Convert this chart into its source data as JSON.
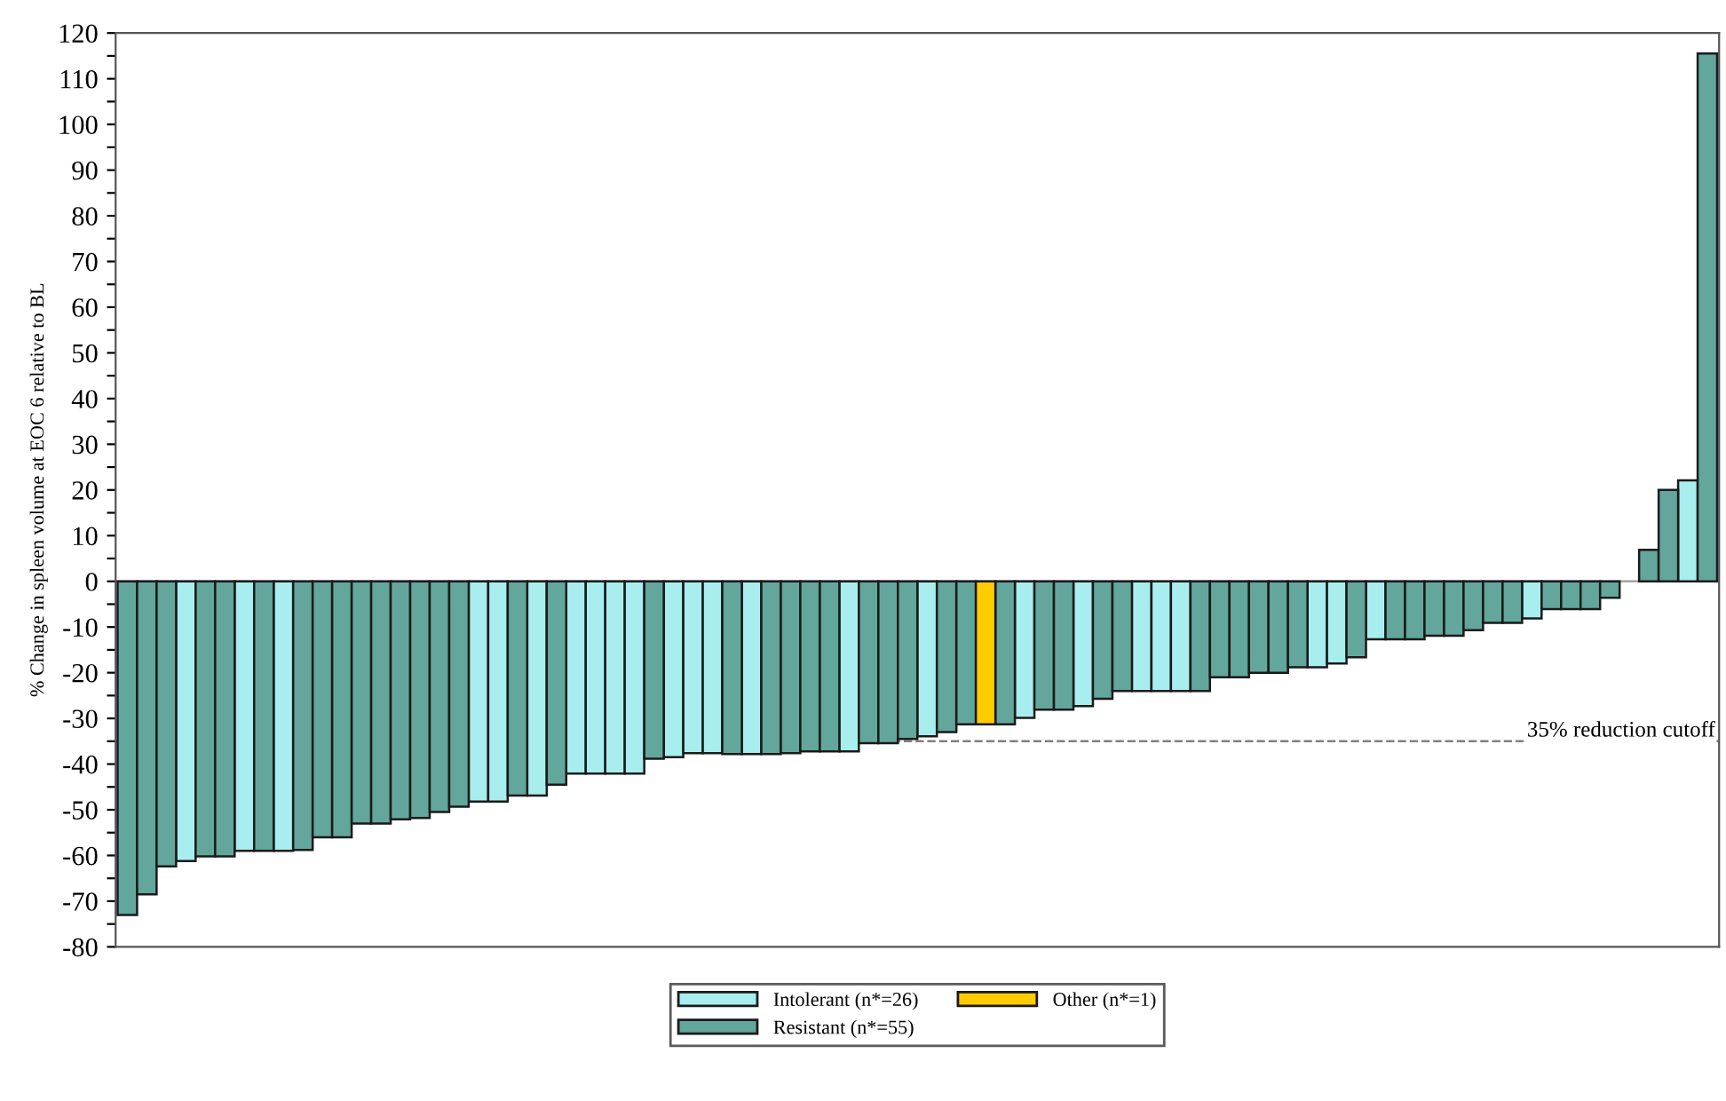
{
  "chart_data": {
    "type": "bar",
    "ylabel": "% Change in spleen volume at EOC 6 relative to BL",
    "categories": [
      null,
      null,
      null,
      null,
      null,
      null,
      null,
      null,
      null,
      null,
      null,
      null,
      null,
      null,
      null,
      null,
      null,
      null,
      null,
      null,
      null,
      null,
      null,
      null,
      null,
      null,
      null,
      null,
      null,
      null,
      null,
      null,
      null,
      null,
      null,
      null,
      null,
      null,
      null,
      null,
      null,
      null,
      null,
      null,
      null,
      null,
      null,
      null,
      null,
      null,
      null,
      null,
      null,
      null,
      null,
      null,
      null,
      null,
      null,
      null,
      null,
      null,
      null,
      null,
      null,
      null,
      null,
      null,
      null,
      null,
      null,
      null,
      null,
      null,
      null,
      null,
      null,
      null,
      null,
      null,
      null,
      null
    ],
    "series": [
      {
        "name": "Intolerant (n*=26)",
        "color": "#a8eeee",
        "values": [
          null,
          null,
          null,
          -61.2,
          null,
          null,
          -59,
          null,
          -59,
          null,
          null,
          null,
          null,
          null,
          null,
          null,
          null,
          null,
          -48.2,
          -48.2,
          null,
          -46.9,
          null,
          -42.1,
          -42.1,
          -42.1,
          -42.1,
          null,
          -38.5,
          -37.6,
          -37.6,
          null,
          -37.8,
          null,
          null,
          null,
          null,
          -37.2,
          null,
          null,
          null,
          -33.9,
          null,
          null,
          null,
          null,
          -29.9,
          null,
          null,
          -27.3,
          null,
          null,
          -24,
          -24,
          -24,
          null,
          null,
          null,
          null,
          null,
          null,
          -18.8,
          -18,
          null,
          -12.7,
          null,
          null,
          null,
          null,
          null,
          null,
          null,
          -8.1,
          null,
          null,
          null,
          null,
          null,
          null,
          null,
          22.1,
          null
        ]
      },
      {
        "name": "Resistant (n*=55)",
        "color": "#62a69c",
        "values": [
          -73,
          -68.5,
          -62.4,
          null,
          -60.2,
          -60.2,
          null,
          -59,
          null,
          -58.8,
          -56,
          -56,
          -53,
          -53,
          -52.1,
          -51.8,
          -50.5,
          -49.3,
          null,
          null,
          -46.9,
          null,
          -44.5,
          null,
          null,
          null,
          null,
          -38.8,
          null,
          null,
          null,
          -37.8,
          null,
          -37.8,
          -37.6,
          -37.2,
          -37.2,
          null,
          -35.4,
          -35.4,
          -34.5,
          null,
          -33,
          -31.3,
          null,
          -31.3,
          null,
          -28.1,
          -28.1,
          null,
          -25.7,
          -24,
          null,
          null,
          null,
          -24,
          -21,
          -21,
          -20,
          -20,
          -18.8,
          null,
          null,
          -16.6,
          null,
          -12.7,
          -12.7,
          -11.9,
          -11.9,
          -10.7,
          -9.1,
          -9.1,
          null,
          -6.1,
          -6.1,
          -6.1,
          -3.6,
          null,
          6.9,
          20,
          null,
          115.5
        ]
      },
      {
        "name": "Other (n*=1)",
        "color": "#ffcc00",
        "values": [
          null,
          null,
          null,
          null,
          null,
          null,
          null,
          null,
          null,
          null,
          null,
          null,
          null,
          null,
          null,
          null,
          null,
          null,
          null,
          null,
          null,
          null,
          null,
          null,
          null,
          null,
          null,
          null,
          null,
          null,
          null,
          null,
          null,
          null,
          null,
          null,
          null,
          null,
          null,
          null,
          null,
          null,
          null,
          null,
          -31.3,
          null,
          null,
          null,
          null,
          null,
          null,
          null,
          null,
          null,
          null,
          null,
          null,
          null,
          null,
          null,
          null,
          null,
          null,
          null,
          null,
          null,
          null,
          null,
          null,
          null,
          null,
          null,
          null,
          null,
          null,
          null,
          null,
          null,
          null,
          null,
          null,
          null
        ]
      }
    ],
    "ylim": [
      -80,
      120
    ],
    "yticks": [
      -80,
      {
        "value": -75,
        "label": null
      },
      -70,
      {
        "value": -65,
        "label": null
      },
      -60,
      {
        "value": -55,
        "label": null
      },
      -50,
      {
        "value": -45,
        "label": null
      },
      -40,
      {
        "value": -35,
        "label": null
      },
      -30,
      {
        "value": -25,
        "label": null
      },
      -20,
      {
        "value": -15,
        "label": null
      },
      -10,
      {
        "value": -5,
        "label": null
      },
      0,
      {
        "value": 5,
        "label": null
      },
      10,
      {
        "value": 15,
        "label": null
      },
      20,
      {
        "value": 25,
        "label": null
      },
      30,
      {
        "value": 35,
        "label": null
      },
      40,
      {
        "value": 45,
        "label": null
      },
      50,
      {
        "value": 55,
        "label": null
      },
      60,
      {
        "value": 65,
        "label": null
      },
      70,
      {
        "value": 75,
        "label": null
      },
      80,
      {
        "value": 85,
        "label": null
      },
      90,
      {
        "value": 95,
        "label": null
      },
      100,
      {
        "value": 105,
        "label": null
      },
      110,
      {
        "value": 115,
        "label": null
      },
      120
    ],
    "ref_lines": [
      {
        "axis": "y",
        "value": -35,
        "label": "35% reduction cutoff",
        "color": "#808080",
        "line_style": "dashed"
      }
    ],
    "legend": "bottom",
    "grid": false
  }
}
